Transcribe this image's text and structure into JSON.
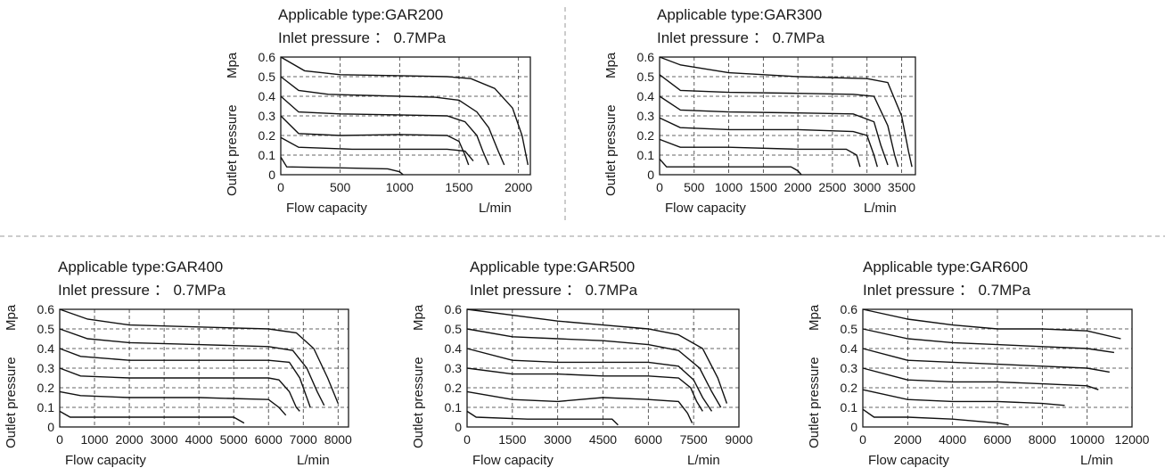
{
  "chart_data": [
    {
      "type": "line",
      "title": "Applicable type:GAR200",
      "subtitle": "Inlet pressure ： 0.7MPa",
      "xlabel": "Flow capacity",
      "xunit": "L/min",
      "ylabel": "Outlet pressure",
      "yunit": "Mpa",
      "xlim": [
        0,
        2100
      ],
      "ylim": [
        0,
        0.6
      ],
      "xticks": [
        0,
        500,
        1000,
        1500,
        2000
      ],
      "yticks": [
        0,
        0.1,
        0.2,
        0.3,
        0.4,
        0.5,
        0.6
      ],
      "grid": true,
      "series": [
        {
          "x": [
            0,
            200,
            500,
            1000,
            1400,
            1600,
            1800,
            1950,
            2030,
            2080
          ],
          "y": [
            0.6,
            0.53,
            0.51,
            0.505,
            0.5,
            0.49,
            0.44,
            0.34,
            0.2,
            0.05
          ]
        },
        {
          "x": [
            0,
            150,
            400,
            1000,
            1300,
            1500,
            1650,
            1750,
            1830,
            1880
          ],
          "y": [
            0.5,
            0.43,
            0.41,
            0.4,
            0.395,
            0.38,
            0.32,
            0.24,
            0.12,
            0.05
          ]
        },
        {
          "x": [
            0,
            150,
            500,
            1000,
            1400,
            1550,
            1650,
            1700,
            1750
          ],
          "y": [
            0.4,
            0.32,
            0.31,
            0.305,
            0.3,
            0.27,
            0.2,
            0.12,
            0.05
          ]
        },
        {
          "x": [
            0,
            150,
            500,
            1000,
            1400,
            1500,
            1550,
            1580
          ],
          "y": [
            0.3,
            0.21,
            0.2,
            0.205,
            0.2,
            0.17,
            0.1,
            0.05
          ]
        },
        {
          "x": [
            0,
            150,
            600,
            1000,
            1400,
            1550,
            1620
          ],
          "y": [
            0.19,
            0.14,
            0.13,
            0.13,
            0.13,
            0.12,
            0.07
          ]
        },
        {
          "x": [
            0,
            50,
            500,
            900,
            1000,
            1030
          ],
          "y": [
            0.09,
            0.04,
            0.035,
            0.03,
            0.015,
            0.0
          ]
        }
      ]
    },
    {
      "type": "line",
      "title": "Applicable type:GAR300",
      "subtitle": "Inlet pressure ： 0.7MPa",
      "xlabel": "Flow capacity",
      "xunit": "L/min",
      "ylabel": "Outlet pressure",
      "yunit": "Mpa",
      "xlim": [
        0,
        3700
      ],
      "ylim": [
        0,
        0.6
      ],
      "xticks": [
        0,
        500,
        1000,
        1500,
        2000,
        2500,
        3000,
        3500
      ],
      "yticks": [
        0,
        0.1,
        0.2,
        0.3,
        0.4,
        0.5,
        0.6
      ],
      "grid": true,
      "series": [
        {
          "x": [
            0,
            300,
            1000,
            2000,
            3000,
            3300,
            3500,
            3600,
            3650
          ],
          "y": [
            0.6,
            0.56,
            0.52,
            0.5,
            0.49,
            0.47,
            0.3,
            0.12,
            0.04
          ]
        },
        {
          "x": [
            0,
            300,
            1000,
            2000,
            2800,
            3100,
            3300,
            3400,
            3450
          ],
          "y": [
            0.51,
            0.43,
            0.42,
            0.415,
            0.41,
            0.4,
            0.25,
            0.1,
            0.04
          ]
        },
        {
          "x": [
            0,
            300,
            1000,
            2000,
            2800,
            3100,
            3200,
            3300
          ],
          "y": [
            0.4,
            0.33,
            0.32,
            0.315,
            0.31,
            0.27,
            0.15,
            0.05
          ]
        },
        {
          "x": [
            0,
            300,
            1000,
            2000,
            2800,
            3000,
            3100,
            3150
          ],
          "y": [
            0.29,
            0.24,
            0.23,
            0.23,
            0.22,
            0.2,
            0.1,
            0.04
          ]
        },
        {
          "x": [
            0,
            300,
            1000,
            2000,
            2700,
            2850,
            2900
          ],
          "y": [
            0.18,
            0.14,
            0.14,
            0.13,
            0.13,
            0.1,
            0.04
          ]
        },
        {
          "x": [
            0,
            100,
            1000,
            1900,
            2000,
            2050
          ],
          "y": [
            0.08,
            0.04,
            0.04,
            0.04,
            0.02,
            0.0
          ]
        }
      ]
    },
    {
      "type": "line",
      "title": "Applicable type:GAR400",
      "subtitle": "Inlet pressure ： 0.7MPa",
      "xlabel": "Flow capacity",
      "xunit": "L/min",
      "ylabel": "Outlet pressure",
      "yunit": "Mpa",
      "xlim": [
        0,
        8300
      ],
      "ylim": [
        0,
        0.6
      ],
      "xticks": [
        0,
        1000,
        2000,
        3000,
        4000,
        5000,
        6000,
        7000,
        8000
      ],
      "yticks": [
        0,
        0.1,
        0.2,
        0.3,
        0.4,
        0.5,
        0.6
      ],
      "grid": true,
      "series": [
        {
          "x": [
            0,
            800,
            2000,
            4000,
            6000,
            6800,
            7300,
            7700,
            8000
          ],
          "y": [
            0.6,
            0.55,
            0.52,
            0.51,
            0.5,
            0.48,
            0.4,
            0.25,
            0.12
          ]
        },
        {
          "x": [
            0,
            800,
            2000,
            4000,
            6000,
            6700,
            7100,
            7400,
            7600
          ],
          "y": [
            0.5,
            0.45,
            0.43,
            0.42,
            0.41,
            0.39,
            0.3,
            0.18,
            0.11
          ]
        },
        {
          "x": [
            0,
            600,
            2000,
            4000,
            6000,
            6600,
            6900,
            7100,
            7200
          ],
          "y": [
            0.4,
            0.36,
            0.34,
            0.34,
            0.34,
            0.33,
            0.25,
            0.15,
            0.1
          ]
        },
        {
          "x": [
            0,
            600,
            2000,
            4000,
            6000,
            6300,
            6600,
            6800,
            6900
          ],
          "y": [
            0.3,
            0.26,
            0.25,
            0.25,
            0.25,
            0.24,
            0.18,
            0.1,
            0.08
          ]
        },
        {
          "x": [
            0,
            600,
            2000,
            4000,
            6000,
            6300,
            6500
          ],
          "y": [
            0.18,
            0.16,
            0.15,
            0.15,
            0.14,
            0.1,
            0.06
          ]
        },
        {
          "x": [
            0,
            300,
            2000,
            4000,
            5000,
            5300
          ],
          "y": [
            0.08,
            0.05,
            0.05,
            0.05,
            0.05,
            0.02
          ]
        }
      ]
    },
    {
      "type": "line",
      "title": "Applicable type:GAR500",
      "subtitle": "Inlet pressure ： 0.7MPa",
      "xlabel": "Flow capacity",
      "xunit": "L/min",
      "ylabel": "Outlet pressure",
      "yunit": "Mpa",
      "xlim": [
        0,
        9000
      ],
      "ylim": [
        0,
        0.6
      ],
      "xticks": [
        0,
        1500,
        3000,
        4500,
        6000,
        7500,
        9000
      ],
      "yticks": [
        0,
        0.1,
        0.2,
        0.3,
        0.4,
        0.5,
        0.6
      ],
      "grid": true,
      "series": [
        {
          "x": [
            0,
            1500,
            3000,
            4500,
            6000,
            7000,
            7800,
            8300,
            8600
          ],
          "y": [
            0.6,
            0.57,
            0.54,
            0.52,
            0.5,
            0.47,
            0.4,
            0.25,
            0.12
          ]
        },
        {
          "x": [
            0,
            1500,
            3000,
            4500,
            6000,
            7000,
            7700,
            8100,
            8400
          ],
          "y": [
            0.5,
            0.46,
            0.45,
            0.44,
            0.42,
            0.39,
            0.3,
            0.18,
            0.1
          ]
        },
        {
          "x": [
            0,
            1500,
            3000,
            4500,
            6000,
            7000,
            7500,
            7800,
            8100
          ],
          "y": [
            0.4,
            0.34,
            0.33,
            0.33,
            0.33,
            0.31,
            0.24,
            0.15,
            0.08
          ]
        },
        {
          "x": [
            0,
            1500,
            3000,
            4500,
            6000,
            7000,
            7400,
            7600,
            7800
          ],
          "y": [
            0.3,
            0.27,
            0.27,
            0.26,
            0.26,
            0.25,
            0.2,
            0.13,
            0.08
          ]
        },
        {
          "x": [
            0,
            1500,
            3000,
            4500,
            6000,
            7000,
            7300,
            7450
          ],
          "y": [
            0.18,
            0.14,
            0.13,
            0.15,
            0.14,
            0.13,
            0.07,
            0.02
          ]
        },
        {
          "x": [
            0,
            300,
            2000,
            4000,
            4800,
            5000
          ],
          "y": [
            0.08,
            0.05,
            0.04,
            0.04,
            0.04,
            0.01
          ]
        }
      ]
    },
    {
      "type": "line",
      "title": "Applicable type:GAR600",
      "subtitle": "Inlet pressure ： 0.7MPa",
      "xlabel": "Flow capacity",
      "xunit": "L/min",
      "ylabel": "Outlet pressure",
      "yunit": "Mpa",
      "xlim": [
        0,
        12000
      ],
      "ylim": [
        0,
        0.6
      ],
      "xticks": [
        0,
        2000,
        4000,
        6000,
        8000,
        10000,
        12000
      ],
      "yticks": [
        0,
        0.1,
        0.2,
        0.3,
        0.4,
        0.5,
        0.6
      ],
      "grid": true,
      "series": [
        {
          "x": [
            0,
            2000,
            4000,
            6000,
            8000,
            10000,
            11500
          ],
          "y": [
            0.6,
            0.55,
            0.52,
            0.5,
            0.5,
            0.49,
            0.45
          ]
        },
        {
          "x": [
            0,
            2000,
            4000,
            6000,
            8000,
            10000,
            11200
          ],
          "y": [
            0.5,
            0.45,
            0.43,
            0.42,
            0.41,
            0.4,
            0.38
          ]
        },
        {
          "x": [
            0,
            2000,
            4000,
            6000,
            8000,
            10000,
            11000
          ],
          "y": [
            0.4,
            0.34,
            0.33,
            0.32,
            0.31,
            0.3,
            0.28
          ]
        },
        {
          "x": [
            0,
            2000,
            4000,
            6000,
            8000,
            10000,
            10500
          ],
          "y": [
            0.3,
            0.24,
            0.23,
            0.23,
            0.22,
            0.21,
            0.19
          ]
        },
        {
          "x": [
            0,
            2000,
            4000,
            6000,
            8000,
            9000
          ],
          "y": [
            0.19,
            0.14,
            0.13,
            0.13,
            0.12,
            0.11
          ]
        },
        {
          "x": [
            0,
            500,
            2000,
            4000,
            6000,
            6500
          ],
          "y": [
            0.09,
            0.05,
            0.05,
            0.04,
            0.02,
            0.01
          ]
        }
      ]
    }
  ]
}
